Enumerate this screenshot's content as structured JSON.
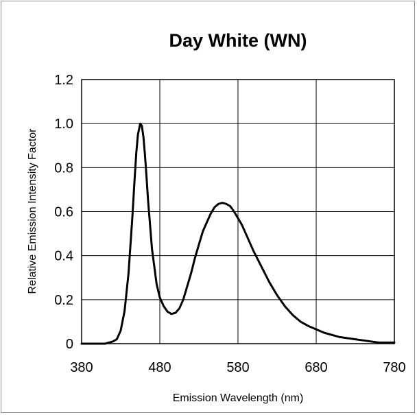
{
  "chart_data": {
    "type": "line",
    "title": "Day White (WN)",
    "xlabel": "Emission Wavelength (nm)",
    "ylabel": "Relative Emission Intensity Factor",
    "xlim": [
      380,
      780
    ],
    "ylim": [
      0,
      1.2
    ],
    "x_ticks": [
      "380",
      "480",
      "580",
      "680",
      "780"
    ],
    "y_ticks": [
      "0",
      "0.2",
      "0.4",
      "0.6",
      "0.8",
      "1.0",
      "1.2"
    ],
    "grid": true,
    "legend": "none",
    "line_color": "#000000",
    "series": [
      {
        "x": [
          380,
          390,
          400,
          410,
          420,
          425,
          430,
          435,
          440,
          445,
          448,
          450,
          452,
          455,
          457,
          459,
          461,
          463,
          465,
          468,
          470,
          473,
          476,
          480,
          485,
          490,
          495,
          500,
          505,
          510,
          515,
          520,
          525,
          530,
          535,
          540,
          545,
          550,
          555,
          560,
          565,
          570,
          575,
          580,
          585,
          590,
          600,
          610,
          620,
          630,
          640,
          650,
          660,
          670,
          680,
          690,
          700,
          710,
          720,
          730,
          740,
          750,
          760,
          770,
          780
        ],
        "y": [
          0.0,
          0.0,
          0.0,
          0.0,
          0.01,
          0.02,
          0.06,
          0.15,
          0.32,
          0.58,
          0.76,
          0.87,
          0.95,
          1.0,
          0.99,
          0.94,
          0.86,
          0.76,
          0.65,
          0.52,
          0.43,
          0.35,
          0.27,
          0.21,
          0.17,
          0.145,
          0.135,
          0.14,
          0.16,
          0.2,
          0.26,
          0.32,
          0.39,
          0.45,
          0.51,
          0.55,
          0.59,
          0.62,
          0.635,
          0.64,
          0.635,
          0.625,
          0.6,
          0.57,
          0.54,
          0.5,
          0.42,
          0.35,
          0.28,
          0.22,
          0.17,
          0.13,
          0.1,
          0.08,
          0.065,
          0.05,
          0.04,
          0.03,
          0.025,
          0.02,
          0.015,
          0.01,
          0.005,
          0.005,
          0.005
        ]
      }
    ]
  }
}
